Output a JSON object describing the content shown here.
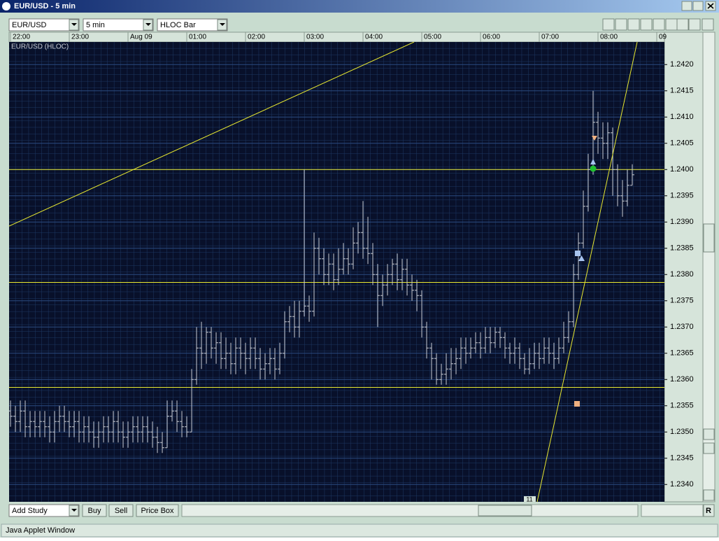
{
  "window": {
    "title": "EUR/USD - 5 min",
    "symbol": "EUR/USD",
    "interval": "5 min",
    "bar_type": "HLOC Bar",
    "buttons": [
      "Add Study",
      "Buy",
      "Sell",
      "Price Box"
    ],
    "reset": "R",
    "marker_label": "11",
    "status": "Java Applet Window"
  },
  "chart_data": {
    "type": "ohlc",
    "title": "EUR/USD (HLOC)",
    "color": "#c8ccd4",
    "hline_color": "#e8e830",
    "xlim": [
      -0.29,
      133.57
    ],
    "xticks": [
      {
        "value": 0,
        "label": "22:00"
      },
      {
        "value": 12,
        "label": "23:00"
      },
      {
        "value": 24,
        "label": "Aug 09"
      },
      {
        "value": 36,
        "label": "01:00"
      },
      {
        "value": 48,
        "label": "02:00"
      },
      {
        "value": 60,
        "label": "03:00"
      },
      {
        "value": 72,
        "label": "04:00"
      },
      {
        "value": 84,
        "label": "05:00"
      },
      {
        "value": 96,
        "label": "06:00"
      },
      {
        "value": 108,
        "label": "07:00"
      },
      {
        "value": 120,
        "label": "08:00"
      },
      {
        "value": 132,
        "label": "09"
      }
    ],
    "ylim": [
      1.23367,
      1.24243
    ],
    "yticks": [
      {
        "value": 1.242,
        "label": "1.2420"
      },
      1.2415,
      {
        "value": 1.241,
        "label": "1.2410"
      },
      1.2405,
      {
        "value": 1.24,
        "label": "1.2400"
      },
      1.2395,
      {
        "value": 1.239,
        "label": "1.2390"
      },
      1.2385,
      {
        "value": 1.238,
        "label": "1.2380"
      },
      1.2375,
      {
        "value": 1.237,
        "label": "1.2370"
      },
      1.2365,
      {
        "value": 1.236,
        "label": "1.2360"
      },
      1.2355,
      {
        "value": 1.235,
        "label": "1.2350"
      },
      1.2345,
      {
        "value": 1.234,
        "label": "1.2340"
      }
    ],
    "hlines": [
      1.24,
      1.23785,
      1.23585
    ],
    "values": [
      [
        1.2354,
        1.2356,
        1.2351,
        1.2353
      ],
      [
        1.2353,
        1.2355,
        1.235,
        1.2352
      ],
      [
        1.2352,
        1.2356,
        1.235,
        1.2354
      ],
      [
        1.2354,
        1.2356,
        1.2349,
        1.2351
      ],
      [
        1.2351,
        1.2354,
        1.2349,
        1.2352
      ],
      [
        1.2352,
        1.2354,
        1.2349,
        1.2351
      ],
      [
        1.2351,
        1.2354,
        1.2349,
        1.2352
      ],
      [
        1.2352,
        1.2354,
        1.2349,
        1.2351
      ],
      [
        1.2351,
        1.2353,
        1.2348,
        1.235
      ],
      [
        1.235,
        1.2354,
        1.2348,
        1.2352
      ],
      [
        1.2352,
        1.2355,
        1.235,
        1.2353
      ],
      [
        1.2353,
        1.2355,
        1.235,
        1.2352
      ],
      [
        1.2352,
        1.2354,
        1.2349,
        1.2351
      ],
      [
        1.2351,
        1.2354,
        1.2349,
        1.2352
      ],
      [
        1.2352,
        1.2354,
        1.2348,
        1.235
      ],
      [
        1.235,
        1.2353,
        1.2348,
        1.2351
      ],
      [
        1.2351,
        1.2353,
        1.2348,
        1.235
      ],
      [
        1.235,
        1.2352,
        1.2347,
        1.2349
      ],
      [
        1.2349,
        1.2352,
        1.2347,
        1.235
      ],
      [
        1.235,
        1.2353,
        1.2348,
        1.2351
      ],
      [
        1.2351,
        1.2353,
        1.2348,
        1.235
      ],
      [
        1.235,
        1.2354,
        1.2348,
        1.2352
      ],
      [
        1.2352,
        1.2354,
        1.2348,
        1.235
      ],
      [
        1.235,
        1.2352,
        1.2347,
        1.2349
      ],
      [
        1.2349,
        1.2352,
        1.2347,
        1.235
      ],
      [
        1.235,
        1.2353,
        1.2348,
        1.2351
      ],
      [
        1.2351,
        1.2353,
        1.2348,
        1.235
      ],
      [
        1.235,
        1.2353,
        1.2348,
        1.2351
      ],
      [
        1.2351,
        1.2353,
        1.2348,
        1.235
      ],
      [
        1.235,
        1.2352,
        1.2347,
        1.2349
      ],
      [
        1.2349,
        1.2351,
        1.2346,
        1.2348
      ],
      [
        1.2348,
        1.235,
        1.2346,
        1.2347
      ],
      [
        1.2347,
        1.2356,
        1.2347,
        1.2353
      ],
      [
        1.2353,
        1.2356,
        1.2352,
        1.2354
      ],
      [
        1.2354,
        1.2356,
        1.235,
        1.2352
      ],
      [
        1.2352,
        1.2354,
        1.2349,
        1.2351
      ],
      [
        1.2351,
        1.2353,
        1.2349,
        1.235
      ],
      [
        1.235,
        1.2362,
        1.235,
        1.236
      ],
      [
        1.236,
        1.237,
        1.2359,
        1.2366
      ],
      [
        1.2366,
        1.2371,
        1.2362,
        1.2365
      ],
      [
        1.2365,
        1.237,
        1.2363,
        1.2369
      ],
      [
        1.2369,
        1.237,
        1.2364,
        1.2366
      ],
      [
        1.2366,
        1.2369,
        1.2363,
        1.2367
      ],
      [
        1.2367,
        1.2369,
        1.2362,
        1.2364
      ],
      [
        1.2364,
        1.2368,
        1.2362,
        1.2365
      ],
      [
        1.2365,
        1.2367,
        1.2361,
        1.2363
      ],
      [
        1.2363,
        1.2368,
        1.2361,
        1.2366
      ],
      [
        1.2366,
        1.2368,
        1.2362,
        1.2365
      ],
      [
        1.2365,
        1.2367,
        1.2361,
        1.2364
      ],
      [
        1.2364,
        1.2368,
        1.2362,
        1.2366
      ],
      [
        1.2366,
        1.2368,
        1.2362,
        1.2364
      ],
      [
        1.2364,
        1.2366,
        1.236,
        1.2362
      ],
      [
        1.2362,
        1.2365,
        1.236,
        1.2363
      ],
      [
        1.2363,
        1.2366,
        1.2361,
        1.2364
      ],
      [
        1.2364,
        1.2366,
        1.236,
        1.2362
      ],
      [
        1.2362,
        1.2367,
        1.2361,
        1.2365
      ],
      [
        1.2365,
        1.2373,
        1.2364,
        1.2371
      ],
      [
        1.2371,
        1.2374,
        1.2369,
        1.2372
      ],
      [
        1.2372,
        1.2375,
        1.2368,
        1.237
      ],
      [
        1.237,
        1.2375,
        1.2368,
        1.2373
      ],
      [
        1.2373,
        1.24,
        1.2372,
        1.2374
      ],
      [
        1.2374,
        1.2376,
        1.2371,
        1.2373
      ],
      [
        1.2373,
        1.2388,
        1.2372,
        1.2385
      ],
      [
        1.2385,
        1.2387,
        1.238,
        1.2383
      ],
      [
        1.2383,
        1.2385,
        1.2378,
        1.238
      ],
      [
        1.238,
        1.2384,
        1.2378,
        1.2382
      ],
      [
        1.2382,
        1.2384,
        1.2377,
        1.2379
      ],
      [
        1.2379,
        1.2385,
        1.2378,
        1.2381
      ],
      [
        1.2381,
        1.2386,
        1.238,
        1.2383
      ],
      [
        1.2383,
        1.2385,
        1.238,
        1.2382
      ],
      [
        1.2382,
        1.2389,
        1.2381,
        1.2386
      ],
      [
        1.2386,
        1.239,
        1.2384,
        1.2388
      ],
      [
        1.2388,
        1.2394,
        1.2383,
        1.2385
      ],
      [
        1.2385,
        1.2391,
        1.2382,
        1.2384
      ],
      [
        1.2384,
        1.2386,
        1.2378,
        1.238
      ],
      [
        1.238,
        1.2382,
        1.237,
        1.2376
      ],
      [
        1.2376,
        1.238,
        1.2374,
        1.2378
      ],
      [
        1.2378,
        1.2382,
        1.2376,
        1.238
      ],
      [
        1.238,
        1.2383,
        1.2378,
        1.2382
      ],
      [
        1.2382,
        1.2384,
        1.2377,
        1.2379
      ],
      [
        1.2379,
        1.2383,
        1.2377,
        1.2381
      ],
      [
        1.2381,
        1.2383,
        1.2376,
        1.2378
      ],
      [
        1.2378,
        1.238,
        1.2375,
        1.2377
      ],
      [
        1.2377,
        1.2379,
        1.2373,
        1.2376
      ],
      [
        1.2376,
        1.2377,
        1.2368,
        1.237
      ],
      [
        1.237,
        1.2371,
        1.2364,
        1.2366
      ],
      [
        1.2366,
        1.2367,
        1.236,
        1.2364
      ],
      [
        1.2364,
        1.2365,
        1.2359,
        1.236
      ],
      [
        1.236,
        1.2363,
        1.2359,
        1.2361
      ],
      [
        1.2361,
        1.2365,
        1.2359,
        1.2362
      ],
      [
        1.2362,
        1.2366,
        1.236,
        1.2363
      ],
      [
        1.2363,
        1.2366,
        1.2361,
        1.2364
      ],
      [
        1.2364,
        1.2368,
        1.2362,
        1.2366
      ],
      [
        1.2366,
        1.2368,
        1.2363,
        1.2365
      ],
      [
        1.2365,
        1.2368,
        1.2364,
        1.2366
      ],
      [
        1.2366,
        1.2369,
        1.2365,
        1.2367
      ],
      [
        1.2367,
        1.2369,
        1.2364,
        1.2366
      ],
      [
        1.2366,
        1.237,
        1.2365,
        1.2368
      ],
      [
        1.2368,
        1.237,
        1.2365,
        1.2367
      ],
      [
        1.2367,
        1.237,
        1.2366,
        1.2369
      ],
      [
        1.2369,
        1.237,
        1.2366,
        1.2368
      ],
      [
        1.2368,
        1.2369,
        1.2364,
        1.2366
      ],
      [
        1.2366,
        1.2367,
        1.2363,
        1.2365
      ],
      [
        1.2365,
        1.2368,
        1.2363,
        1.2366
      ],
      [
        1.2366,
        1.2367,
        1.2362,
        1.2364
      ],
      [
        1.2364,
        1.2365,
        1.2361,
        1.2362
      ],
      [
        1.2362,
        1.2366,
        1.2361,
        1.2363
      ],
      [
        1.2363,
        1.2367,
        1.2362,
        1.2365
      ],
      [
        1.2365,
        1.2367,
        1.2362,
        1.2364
      ],
      [
        1.2364,
        1.2368,
        1.2363,
        1.2366
      ],
      [
        1.2366,
        1.2368,
        1.2363,
        1.2365
      ],
      [
        1.2365,
        1.2367,
        1.2362,
        1.2364
      ],
      [
        1.2364,
        1.2368,
        1.2363,
        1.2366
      ],
      [
        1.2366,
        1.2371,
        1.2365,
        1.2368
      ],
      [
        1.2368,
        1.2373,
        1.2367,
        1.2371
      ],
      [
        1.2371,
        1.2382,
        1.237,
        1.238
      ],
      [
        1.238,
        1.2388,
        1.2379,
        1.2386
      ],
      [
        1.2386,
        1.2396,
        1.2385,
        1.2393
      ],
      [
        1.2393,
        1.2403,
        1.2392,
        1.24
      ],
      [
        1.24,
        1.2415,
        1.2399,
        1.2409
      ],
      [
        1.2409,
        1.2411,
        1.2403,
        1.2406
      ],
      [
        1.2406,
        1.2409,
        1.2402,
        1.2405
      ],
      [
        1.2405,
        1.2409,
        1.2402,
        1.2407
      ],
      [
        1.2407,
        1.2408,
        1.2395,
        1.24
      ],
      [
        1.24,
        1.2401,
        1.2393,
        1.2395
      ],
      [
        1.2395,
        1.2398,
        1.2391,
        1.2394
      ],
      [
        1.2394,
        1.24,
        1.2393,
        1.2397
      ],
      [
        1.2397,
        1.2401,
        1.2397,
        1.2399
      ]
    ]
  }
}
